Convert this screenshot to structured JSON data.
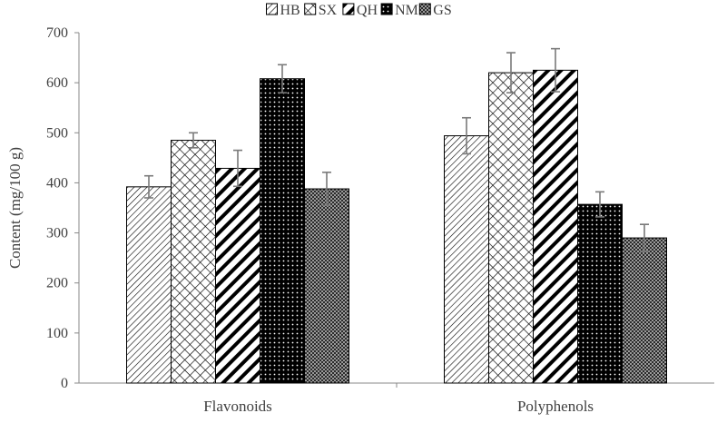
{
  "chart_data": {
    "type": "bar",
    "title": "",
    "xlabel": "",
    "ylabel": "Content (mg/100 g)",
    "ylim": [
      0,
      700
    ],
    "yticks": [
      0,
      100,
      200,
      300,
      400,
      500,
      600,
      700
    ],
    "grid": false,
    "legend_position": "top",
    "categories": [
      "Flavonoids",
      "Polyphenols"
    ],
    "series": [
      {
        "name": "HB",
        "values": [
          392,
          494
        ],
        "errors": [
          22,
          36
        ],
        "pattern": "thin-diagonal"
      },
      {
        "name": "SX",
        "values": [
          485,
          620
        ],
        "errors": [
          15,
          40
        ],
        "pattern": "crosshatch"
      },
      {
        "name": "QH",
        "values": [
          429,
          625
        ],
        "errors": [
          36,
          43
        ],
        "pattern": "wide-diagonal"
      },
      {
        "name": "NM",
        "values": [
          608,
          357
        ],
        "errors": [
          28,
          25
        ],
        "pattern": "black-dots"
      },
      {
        "name": "GS",
        "values": [
          388,
          290
        ],
        "errors": [
          33,
          27
        ],
        "pattern": "gray-check"
      }
    ]
  }
}
